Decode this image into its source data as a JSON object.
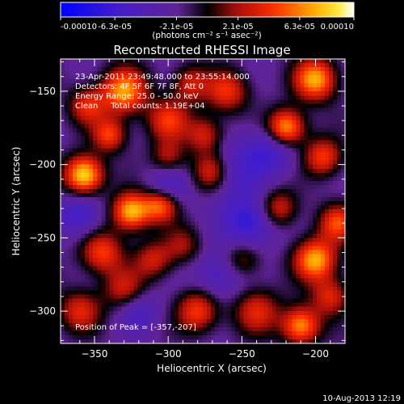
{
  "chart_data": {
    "type": "heatmap",
    "title": "Reconstructed RHESSI Image",
    "xlabel": "Heliocentric X (arcsec)",
    "ylabel": "Heliocentric Y (arcsec)",
    "xlim": [
      -373,
      -180
    ],
    "ylim": [
      -322,
      -128
    ],
    "x_ticks": [
      -350,
      -300,
      -250,
      -200
    ],
    "y_ticks": [
      -150,
      -200,
      -250,
      -300
    ],
    "colorbar": {
      "range": [
        -0.0001,
        0.0001
      ],
      "tick_values": [
        -0.0001,
        -6.3e-05,
        -2.1e-05,
        2.1e-05,
        6.3e-05,
        0.0001
      ],
      "tick_labels": [
        "-0.00010",
        "-6.3e-05",
        "-2.1e-05",
        "2.1e-05",
        "6.3e-05",
        "0.00010"
      ],
      "unit": "(photons cm⁻² s⁻¹ asec⁻²)"
    },
    "annotations": [
      "23-Apr-2011 23:49:48.000 to 23:55:14.000",
      "Detectors: 4F 5F 6F 7F 8F, Att 0",
      "Energy Range: 25.0 - 50.0 keV",
      "Clean     Total counts: 1.19E+04"
    ],
    "peak_label": "Position of Peak = [-357,-207]",
    "peak": [
      -357,
      -207
    ],
    "blobs": [
      {
        "x": -357,
        "y": -207,
        "a": 1.0,
        "s": 9
      },
      {
        "x": -330,
        "y": -150,
        "a": 0.8,
        "s": 11
      },
      {
        "x": -200,
        "y": -142,
        "a": 0.85,
        "s": 10
      },
      {
        "x": -220,
        "y": -175,
        "a": 0.9,
        "s": 9
      },
      {
        "x": -195,
        "y": -195,
        "a": 0.6,
        "s": 9
      },
      {
        "x": -300,
        "y": -170,
        "a": 0.55,
        "s": 10
      },
      {
        "x": -270,
        "y": -205,
        "a": 0.7,
        "s": 10
      },
      {
        "x": -325,
        "y": -232,
        "a": 0.9,
        "s": 9
      },
      {
        "x": -305,
        "y": -228,
        "a": 0.7,
        "s": 8
      },
      {
        "x": -275,
        "y": -180,
        "a": 0.5,
        "s": 9
      },
      {
        "x": -345,
        "y": -260,
        "a": 0.6,
        "s": 10
      },
      {
        "x": -360,
        "y": -300,
        "a": 0.5,
        "s": 10
      },
      {
        "x": -330,
        "y": -285,
        "a": 0.45,
        "s": 10
      },
      {
        "x": -280,
        "y": -300,
        "a": 0.6,
        "s": 10
      },
      {
        "x": -240,
        "y": -300,
        "a": 0.5,
        "s": 11
      },
      {
        "x": -200,
        "y": -265,
        "a": 0.85,
        "s": 10
      },
      {
        "x": -185,
        "y": -240,
        "a": 0.6,
        "s": 9
      },
      {
        "x": -210,
        "y": -310,
        "a": 0.8,
        "s": 9
      },
      {
        "x": -310,
        "y": -265,
        "a": 0.45,
        "s": 9
      },
      {
        "x": -260,
        "y": -150,
        "a": 0.55,
        "s": 10
      },
      {
        "x": -225,
        "y": -230,
        "a": 0.5,
        "s": 9
      },
      {
        "x": -250,
        "y": -265,
        "a": 0.4,
        "s": 9
      },
      {
        "x": -290,
        "y": -255,
        "a": 0.35,
        "s": 9
      },
      {
        "x": -285,
        "y": -145,
        "a": 0.45,
        "s": 9
      },
      {
        "x": -355,
        "y": -160,
        "a": 0.5,
        "s": 9
      },
      {
        "x": -340,
        "y": -180,
        "a": 0.6,
        "s": 8
      },
      {
        "x": -300,
        "y": -195,
        "a": 0.4,
        "s": 8
      },
      {
        "x": -190,
        "y": -290,
        "a": 0.5,
        "s": 9
      },
      {
        "x": -260,
        "y": -205,
        "a": -0.45,
        "s": 14
      },
      {
        "x": -245,
        "y": -240,
        "a": -0.5,
        "s": 12
      },
      {
        "x": -230,
        "y": -190,
        "a": -0.4,
        "s": 12
      },
      {
        "x": -360,
        "y": -235,
        "a": -0.4,
        "s": 10
      },
      {
        "x": -265,
        "y": -275,
        "a": -0.35,
        "s": 12
      },
      {
        "x": -300,
        "y": -215,
        "a": -0.3,
        "s": 10
      },
      {
        "x": -320,
        "y": -300,
        "a": -0.3,
        "s": 10
      }
    ]
  },
  "timestamp": "10-Aug-2013 12:19"
}
